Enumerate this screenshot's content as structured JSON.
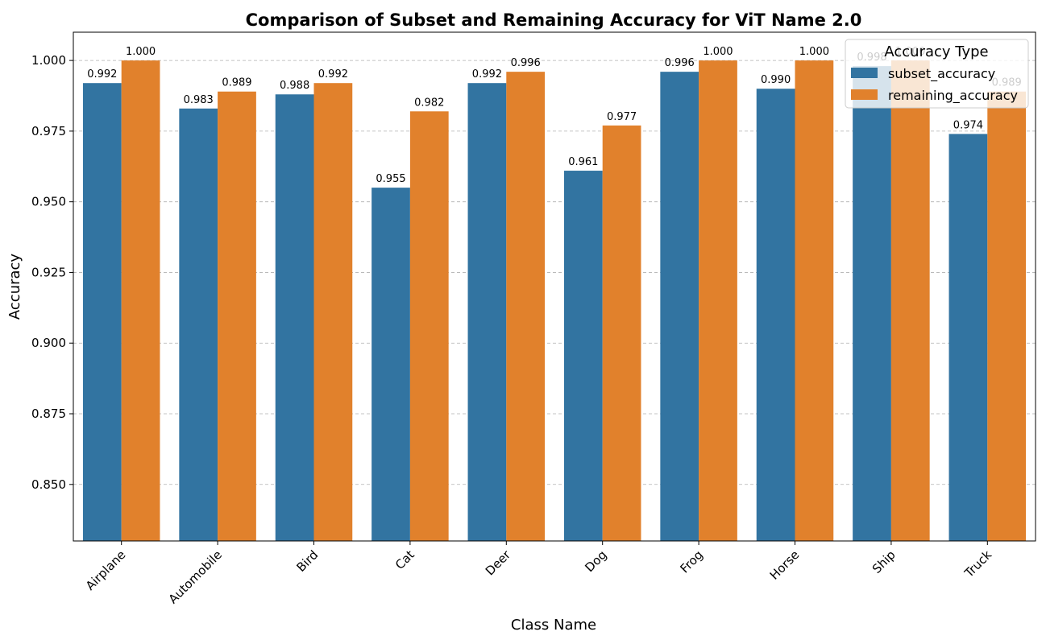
{
  "chart_data": {
    "type": "bar",
    "title": "Comparison of Subset and Remaining Accuracy for ViT Name 2.0",
    "xlabel": "Class Name",
    "ylabel": "Accuracy",
    "categories": [
      "Airplane",
      "Automobile",
      "Bird",
      "Cat",
      "Deer",
      "Dog",
      "Frog",
      "Horse",
      "Ship",
      "Truck"
    ],
    "series": [
      {
        "name": "subset_accuracy",
        "color": "#3274a1",
        "values": [
          0.992,
          0.983,
          0.988,
          0.955,
          0.992,
          0.961,
          0.996,
          0.99,
          0.998,
          0.974
        ],
        "labels": [
          "0.992",
          "0.983",
          "0.988",
          "0.955",
          "0.992",
          "0.961",
          "0.996",
          "0.990",
          "0.998",
          "0.974"
        ]
      },
      {
        "name": "remaining_accuracy",
        "color": "#e1812c",
        "values": [
          1.0,
          0.989,
          0.992,
          0.982,
          0.996,
          0.977,
          1.0,
          1.0,
          1.0,
          0.989
        ],
        "labels": [
          "1.000",
          "0.989",
          "0.992",
          "0.982",
          "0.996",
          "0.977",
          "1.000",
          "1.000",
          "1.000",
          "0.989"
        ]
      }
    ],
    "ylim": [
      0.83,
      1.01
    ],
    "yticks": [
      0.85,
      0.875,
      0.9,
      0.925,
      0.95,
      0.975,
      1.0
    ],
    "ytick_labels": [
      "0.850",
      "0.875",
      "0.900",
      "0.925",
      "0.950",
      "0.975",
      "1.000"
    ],
    "grid": "y-dashed",
    "legend": {
      "title": "Accuracy Type",
      "placement": "top-right"
    }
  }
}
